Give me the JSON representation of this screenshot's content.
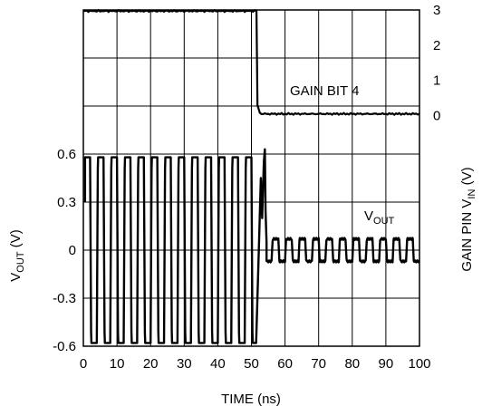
{
  "chart_data": {
    "type": "line",
    "xlabel": "TIME (ns)",
    "x_ticks": [
      0,
      10,
      20,
      30,
      40,
      50,
      60,
      70,
      80,
      90,
      100
    ],
    "xlim": [
      0,
      100
    ],
    "y_left": {
      "label_main": "V",
      "label_sub": "OUT",
      "label_tail": " (V)",
      "ticks": [
        "0.6",
        "0.3",
        "0",
        "-0.3",
        "-0.6"
      ],
      "tick_values": [
        0.6,
        0.3,
        0,
        -0.3,
        -0.6
      ],
      "range": [
        -0.6,
        0.6
      ]
    },
    "y_right": {
      "label_main": "GAIN PIN V",
      "label_sub": "IN",
      "label_tail": " (V)",
      "ticks": [
        "3",
        "2",
        "1",
        "0"
      ],
      "tick_values": [
        3,
        2,
        1,
        0
      ],
      "range": [
        0,
        3
      ]
    },
    "grid": true,
    "annotations": {
      "gain": "GAIN BIT 4",
      "vout_main": "V",
      "vout_sub": "OUT"
    },
    "series": [
      {
        "key": "gain_bit_4",
        "axis": "right",
        "step_time_ns": 51.5,
        "level_before": 3.0,
        "level_after": 0.05
      },
      {
        "key": "vout",
        "axis": "left",
        "segments": [
          {
            "t_start": 0.5,
            "t_end": 51.5,
            "period_ns": 4.0,
            "amplitude_v": 0.58,
            "offset_v": 0.0
          },
          {
            "t_start": 54.5,
            "t_end": 100,
            "period_ns": 4.0,
            "amplitude_v": 0.07,
            "offset_v": 0.0
          }
        ],
        "transient": {
          "t": 54.0,
          "peak_v": 0.63
        }
      }
    ]
  }
}
